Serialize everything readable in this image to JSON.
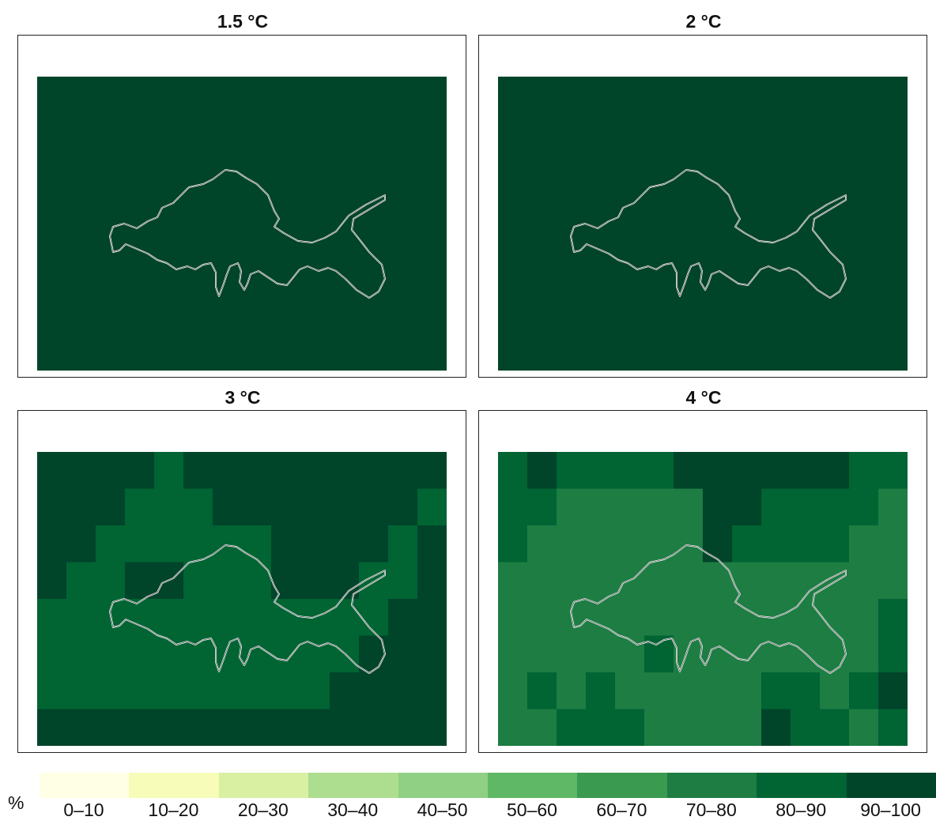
{
  "panels": [
    {
      "title": "1.5 °C",
      "grid": "11111111111111/11111111111111/11111111111111/11111111111111/11111111111111/11111111111111/11111111111111/11111111111111"
    },
    {
      "title": "2 °C",
      "grid": "11111111111111/11111111111111/11111111111111/11111111111111/11111111111111/11111111111111/11111111111111/11111111111111"
    },
    {
      "title": "3 °C",
      "grid": "11112111111111/11122211111112/11222222111121/12211222111221/22222222222211/22222222222111/22222222221111/11111111111111"
    },
    {
      "title": "4 °C",
      "grid": "21222211111122/22333331122223/23333331222233/33333333333333/33333333333332/33333233333332/32323333322321/33222333312232"
    }
  ],
  "value_classes": {
    "1": "90–100",
    "2": "80–90",
    "3": "70–80"
  },
  "legend": {
    "unit": "%",
    "bins": [
      {
        "label": "0–10",
        "color": "#ffffe5"
      },
      {
        "label": "10–20",
        "color": "#f7fcb9"
      },
      {
        "label": "20–30",
        "color": "#d9f0a3"
      },
      {
        "label": "30–40",
        "color": "#addd8e"
      },
      {
        "label": "40–50",
        "color": "#8fd084"
      },
      {
        "label": "50–60",
        "color": "#5fb866"
      },
      {
        "label": "60–70",
        "color": "#3a9a4f"
      },
      {
        "label": "70–80",
        "color": "#1d7d43"
      },
      {
        "label": "80–90",
        "color": "#006433"
      },
      {
        "label": "90–100",
        "color": "#00442a"
      }
    ]
  },
  "class_colors": {
    "1": "#00442a",
    "2": "#006433",
    "3": "#1d7d43"
  }
}
